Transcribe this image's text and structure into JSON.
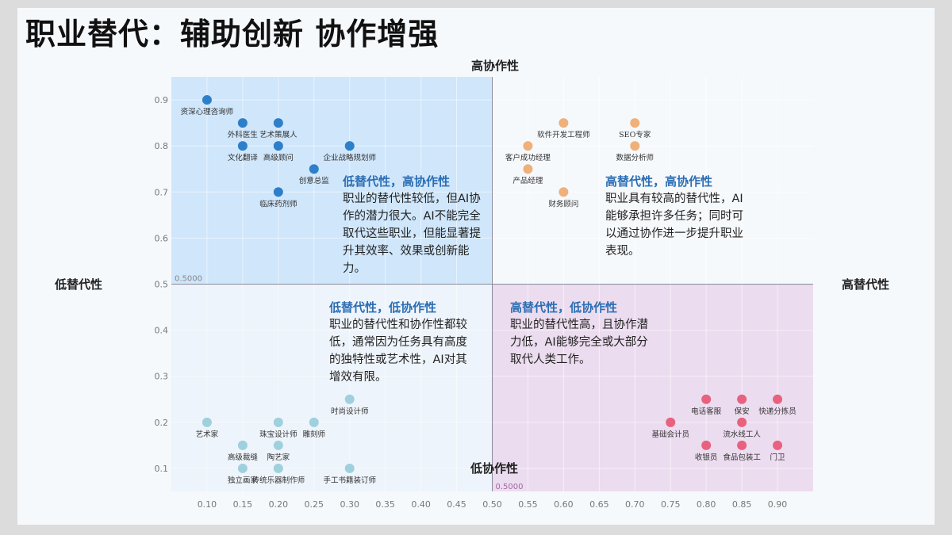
{
  "title": "职业替代：辅助创新 协作增强",
  "axis_labels": {
    "top": "高协作性",
    "bottom": "低协作性",
    "left": "低替代性",
    "right": "高替代性"
  },
  "colors": {
    "q_top_left_bg": "#cfe6fb",
    "q_bottom_right_bg": "#ecdcef",
    "q_bottom_left_bg": "#eef4fb",
    "q_top_right_bg": "#f6f9fc",
    "series_top_left": "#2e7fc9",
    "series_top_right": "#f0b07a",
    "series_bottom_left": "#9fd0dd",
    "series_bottom_right": "#e8617f"
  },
  "quadrants": {
    "top_left": {
      "title": "低替代性，高协作性",
      "body": "职业的替代性较低，但AI协作的潜力很大。AI不能完全取代这些职业，但能显著提升其效率、效果或创新能力。"
    },
    "top_right": {
      "title": "高替代性，高协作性",
      "body": "职业具有较高的替代性，AI能够承担许多任务；同时可以通过协作进一步提升职业表现。"
    },
    "bottom_left": {
      "title": "低替代性，低协作性",
      "body": "职业的替代性和协作性都较低，通常因为任务具有高度的独特性或艺术性，AI对其增效有限。"
    },
    "bottom_right": {
      "title": "高替代性，低协作性",
      "body": "职业的替代性高，且协作潜力低，AI能够完全或大部分取代人类工作。"
    }
  },
  "chart_data": {
    "type": "scatter",
    "xlim": [
      0.05,
      0.95
    ],
    "ylim": [
      0.05,
      0.95
    ],
    "x_ticks": [
      "0.10",
      "0.15",
      "0.20",
      "0.25",
      "0.30",
      "0.35",
      "0.40",
      "0.45",
      "0.50",
      "0.55",
      "0.60",
      "0.65",
      "0.70",
      "0.75",
      "0.80",
      "0.85",
      "0.90"
    ],
    "y_ticks": [
      "0.1",
      "0.2",
      "0.3",
      "0.4",
      "0.5",
      "0.6",
      "0.7",
      "0.8",
      "0.9"
    ],
    "divider_x": 0.5,
    "divider_y": 0.5,
    "divider_labels": {
      "horizontal": "0.5000",
      "vertical": "0.5000"
    },
    "grid": true,
    "series": [
      {
        "quadrant": "top_left",
        "points": [
          {
            "label": "资深心理咨询师",
            "x": 0.1,
            "y": 0.9
          },
          {
            "label": "外科医生",
            "x": 0.15,
            "y": 0.85
          },
          {
            "label": "艺术策展人",
            "x": 0.2,
            "y": 0.85
          },
          {
            "label": "文化翻译",
            "x": 0.15,
            "y": 0.8
          },
          {
            "label": "高级顾问",
            "x": 0.2,
            "y": 0.8
          },
          {
            "label": "企业战略规划师",
            "x": 0.3,
            "y": 0.8
          },
          {
            "label": "创意总监",
            "x": 0.25,
            "y": 0.75
          },
          {
            "label": "临床药剂师",
            "x": 0.2,
            "y": 0.7
          }
        ]
      },
      {
        "quadrant": "top_right",
        "points": [
          {
            "label": "软件开发工程师",
            "x": 0.6,
            "y": 0.85
          },
          {
            "label": "SEO专家",
            "x": 0.7,
            "y": 0.85
          },
          {
            "label": "客户成功经理",
            "x": 0.55,
            "y": 0.8
          },
          {
            "label": "数据分析师",
            "x": 0.7,
            "y": 0.8
          },
          {
            "label": "产品经理",
            "x": 0.55,
            "y": 0.75
          },
          {
            "label": "财务顾问",
            "x": 0.6,
            "y": 0.7
          }
        ]
      },
      {
        "quadrant": "bottom_left",
        "points": [
          {
            "label": "时尚设计师",
            "x": 0.3,
            "y": 0.25
          },
          {
            "label": "艺术家",
            "x": 0.1,
            "y": 0.2
          },
          {
            "label": "珠宝设计师",
            "x": 0.2,
            "y": 0.2
          },
          {
            "label": "雕刻师",
            "x": 0.25,
            "y": 0.2
          },
          {
            "label": "高级裁缝",
            "x": 0.15,
            "y": 0.15
          },
          {
            "label": "陶艺家",
            "x": 0.2,
            "y": 0.15
          },
          {
            "label": "独立画家",
            "x": 0.15,
            "y": 0.1
          },
          {
            "label": "传统乐器制作师",
            "x": 0.2,
            "y": 0.1
          },
          {
            "label": "手工书籍装订师",
            "x": 0.3,
            "y": 0.1
          }
        ]
      },
      {
        "quadrant": "bottom_right",
        "points": [
          {
            "label": "电话客服",
            "x": 0.8,
            "y": 0.25
          },
          {
            "label": "保安",
            "x": 0.85,
            "y": 0.25
          },
          {
            "label": "快递分拣员",
            "x": 0.9,
            "y": 0.25
          },
          {
            "label": "基础会计员",
            "x": 0.75,
            "y": 0.2
          },
          {
            "label": "流水线工人",
            "x": 0.85,
            "y": 0.2
          },
          {
            "label": "收银员",
            "x": 0.8,
            "y": 0.15
          },
          {
            "label": "食品包装工",
            "x": 0.85,
            "y": 0.15
          },
          {
            "label": "门卫",
            "x": 0.9,
            "y": 0.15
          }
        ]
      }
    ]
  }
}
